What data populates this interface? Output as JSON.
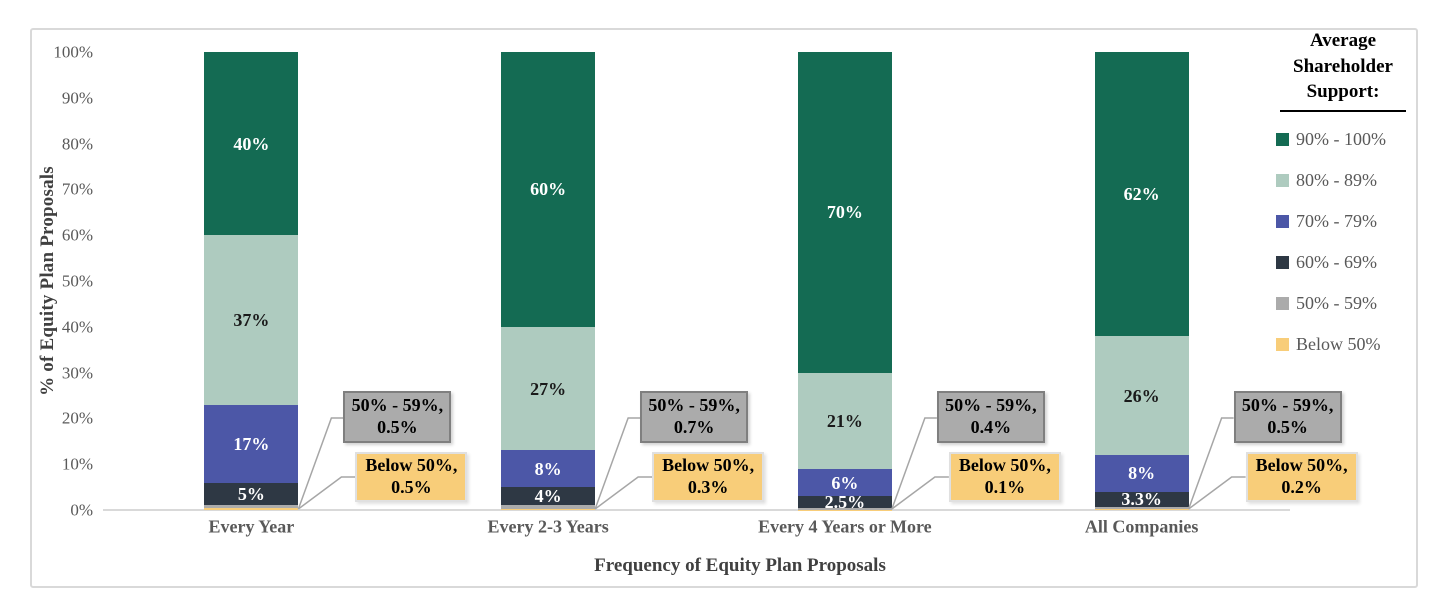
{
  "chart_data": {
    "type": "stacked-bar",
    "xlabel": "Frequency of Equity Plan Proposals",
    "ylabel": "% of Equity Plan Proposals",
    "categories": [
      "Every Year",
      "Every 2-3 Years",
      "Every 4 Years or More",
      "All Companies"
    ],
    "ylim": [
      0,
      100
    ],
    "y_ticks": [
      "0%",
      "10%",
      "20%",
      "30%",
      "40%",
      "50%",
      "60%",
      "70%",
      "80%",
      "90%",
      "100%"
    ],
    "grid": "off",
    "legend_position": "right",
    "legend_title": "Average Shareholder Support:",
    "series": [
      {
        "name": "Below 50%",
        "color": "#F8CD79",
        "labeled": false,
        "label_color": "#000000",
        "values": [
          0.5,
          0.3,
          0.1,
          0.2
        ]
      },
      {
        "name": "50% - 59%",
        "color": "#ABABAB",
        "labeled": false,
        "label_color": "#000000",
        "values": [
          0.5,
          0.7,
          0.4,
          0.5
        ]
      },
      {
        "name": "60% - 69%",
        "color": "#2E3844",
        "labeled": true,
        "label_color": "#FFFFFF",
        "values": [
          5,
          4,
          2.5,
          3.3
        ]
      },
      {
        "name": "70% - 79%",
        "color": "#4C57A7",
        "labeled": true,
        "label_color": "#FFFFFF",
        "values": [
          17,
          8,
          6,
          8
        ]
      },
      {
        "name": "80% - 89%",
        "color": "#AECBBF",
        "labeled": true,
        "label_color": "#1A1A1A",
        "values": [
          37,
          27,
          21,
          26
        ]
      },
      {
        "name": "90% - 100%",
        "color": "#146B53",
        "labeled": true,
        "label_color": "#FFFFFF",
        "values": [
          40,
          60,
          70,
          62
        ]
      }
    ],
    "legend_entries": [
      {
        "label": "90% - 100%",
        "color": "#146B53"
      },
      {
        "label": "80% - 89%",
        "color": "#AECBBF"
      },
      {
        "label": "70% - 79%",
        "color": "#4C57A7"
      },
      {
        "label": "60% - 69%",
        "color": "#2E3844"
      },
      {
        "label": "50% - 59%",
        "color": "#ABABAB"
      },
      {
        "label": "Below 50%",
        "color": "#F8CD79"
      }
    ],
    "callouts": [
      {
        "gray_label": "50% - 59%,",
        "gray_value": "0.5%",
        "yellow_label": "Below 50%,",
        "yellow_value": "0.5%"
      },
      {
        "gray_label": "50% - 59%,",
        "gray_value": "0.7%",
        "yellow_label": "Below 50%,",
        "yellow_value": "0.3%"
      },
      {
        "gray_label": "50% - 59%,",
        "gray_value": "0.4%",
        "yellow_label": "Below 50%,",
        "yellow_value": "0.1%"
      },
      {
        "gray_label": "50% - 59%,",
        "gray_value": "0.5%",
        "yellow_label": "Below 50%,",
        "yellow_value": "0.2%"
      }
    ],
    "ui_colors": {
      "frame_border": "#D9D9D9",
      "axis_line": "#D9D9D9",
      "tick_text": "#595959",
      "axis_title_text": "#404040",
      "leader_line": "#A6A6A6",
      "callout_gray_bg": "#ABABAB",
      "callout_gray_border": "#7F7F7F",
      "callout_yellow_bg": "#F8CD79"
    }
  }
}
